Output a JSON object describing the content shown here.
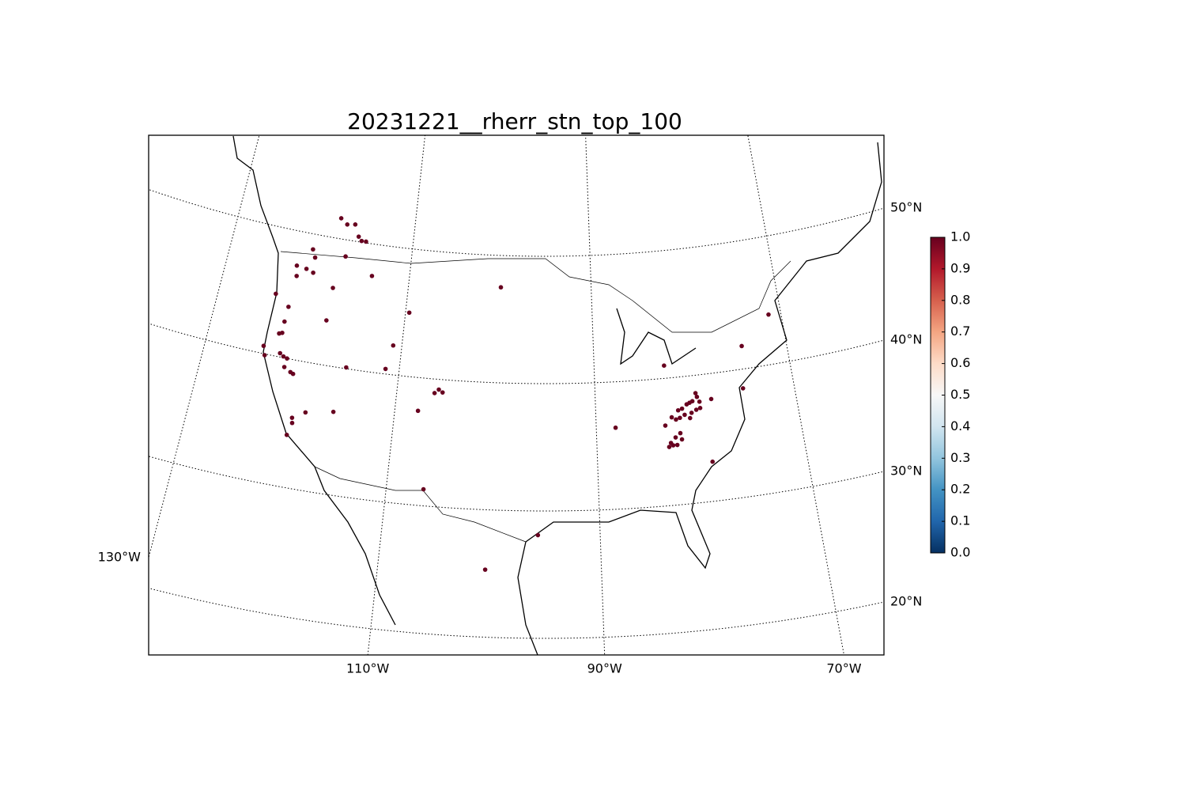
{
  "chart_data": {
    "type": "scatter",
    "title": "20231221__rherr_stn_top_100",
    "x": [
      -118.5,
      -117.7,
      -116.8,
      -116.2,
      -115.8,
      -115.3,
      -117.3,
      -121.0,
      -120.6,
      -122.4,
      -121.3,
      -120.5,
      -122.2,
      -124.0,
      -118.1,
      -114.1,
      -122.4,
      -122.5,
      -122.5,
      -122.8,
      -118.2,
      -124.1,
      -123.8,
      -122.3,
      -121.9,
      -121.5,
      -121.6,
      -120.9,
      -120.6,
      -119.9,
      -119.8,
      -118.7,
      -116.0,
      -120.1,
      -109.6,
      -110.9,
      -111.4,
      -115.4,
      -106.2,
      -105.8,
      -105.4,
      -107.7,
      -99.9,
      -106.5,
      -95.7,
      -100.4,
      -74.6,
      -71.3,
      -82.8,
      -79.9,
      -79.8,
      -80.3,
      -79.6,
      -80.6,
      -80.9,
      -81.4,
      -81.8,
      -80.0,
      -80.5,
      -81.2,
      -81.7,
      -80.7,
      -82.5,
      -82.1,
      -79.6,
      -78.4,
      -75.1,
      -83.2,
      -88.1,
      -81.8,
      -82.3,
      -81.7,
      -82.8,
      -82.6,
      -82.2,
      -83.0,
      -79.0
    ],
    "values": [
      51.6,
      51.2,
      51.3,
      50.4,
      50.1,
      50.1,
      48.7,
      48.8,
      48.2,
      47.3,
      47.2,
      47.0,
      46.5,
      44.8,
      46.1,
      47.5,
      44.0,
      42.8,
      41.9,
      41.8,
      43.5,
      40.6,
      39.9,
      40.3,
      40.1,
      40.0,
      39.3,
      39.0,
      38.9,
      35.5,
      35.1,
      36.1,
      36.5,
      34.1,
      45.0,
      42.3,
      40.4,
      40.1,
      38.9,
      39.2,
      39.0,
      37.4,
      47.5,
      31.3,
      28.1,
      25.3,
      41.8,
      43.9,
      41.0,
      38.6,
      38.3,
      38.0,
      37.9,
      37.9,
      37.8,
      37.5,
      37.4,
      37.3,
      37.1,
      37.0,
      36.8,
      36.7,
      36.9,
      36.7,
      37.4,
      38.0,
      38.5,
      36.3,
      36.4,
      35.6,
      35.3,
      35.1,
      34.9,
      34.7,
      34.7,
      34.6,
      33.1
    ],
    "z": [
      1.0,
      1.0,
      1.0,
      1.0,
      1.0,
      1.0,
      1.0,
      1.0,
      1.0,
      1.0,
      1.0,
      1.0,
      1.0,
      1.0,
      1.0,
      1.0,
      1.0,
      1.0,
      1.0,
      1.0,
      1.0,
      1.0,
      1.0,
      1.0,
      1.0,
      1.0,
      1.0,
      1.0,
      1.0,
      1.0,
      1.0,
      1.0,
      1.0,
      1.0,
      1.0,
      1.0,
      1.0,
      1.0,
      1.0,
      1.0,
      1.0,
      1.0,
      1.0,
      1.0,
      1.0,
      1.0,
      1.0,
      1.0,
      1.0,
      1.0,
      1.0,
      1.0,
      1.0,
      1.0,
      1.0,
      1.0,
      1.0,
      1.0,
      1.0,
      1.0,
      1.0,
      1.0,
      1.0,
      1.0,
      1.0,
      1.0,
      1.0,
      1.0,
      1.0,
      1.0,
      1.0,
      1.0,
      1.0,
      1.0,
      1.0,
      1.0,
      1.0
    ],
    "xticks": [
      {
        "value": -130,
        "label": "130°W"
      },
      {
        "value": -110,
        "label": "110°W"
      },
      {
        "value": -90,
        "label": "90°W"
      },
      {
        "value": -70,
        "label": "70°W"
      }
    ],
    "yticks": [
      {
        "value": 20,
        "label": "20°N"
      },
      {
        "value": 30,
        "label": "30°N"
      },
      {
        "value": 40,
        "label": "40°N"
      },
      {
        "value": 50,
        "label": "50°N"
      }
    ],
    "colorbar": {
      "lim": [
        0,
        1
      ],
      "color_high": "#67001f",
      "color_low": "#053061",
      "ticks": [
        {
          "value": 0,
          "label": "0.0"
        },
        0.1,
        0.2,
        0.3,
        0.4,
        0.5,
        0.6,
        0.7,
        0.8,
        0.9,
        {
          "value": 1,
          "label": "1.0"
        }
      ]
    }
  }
}
